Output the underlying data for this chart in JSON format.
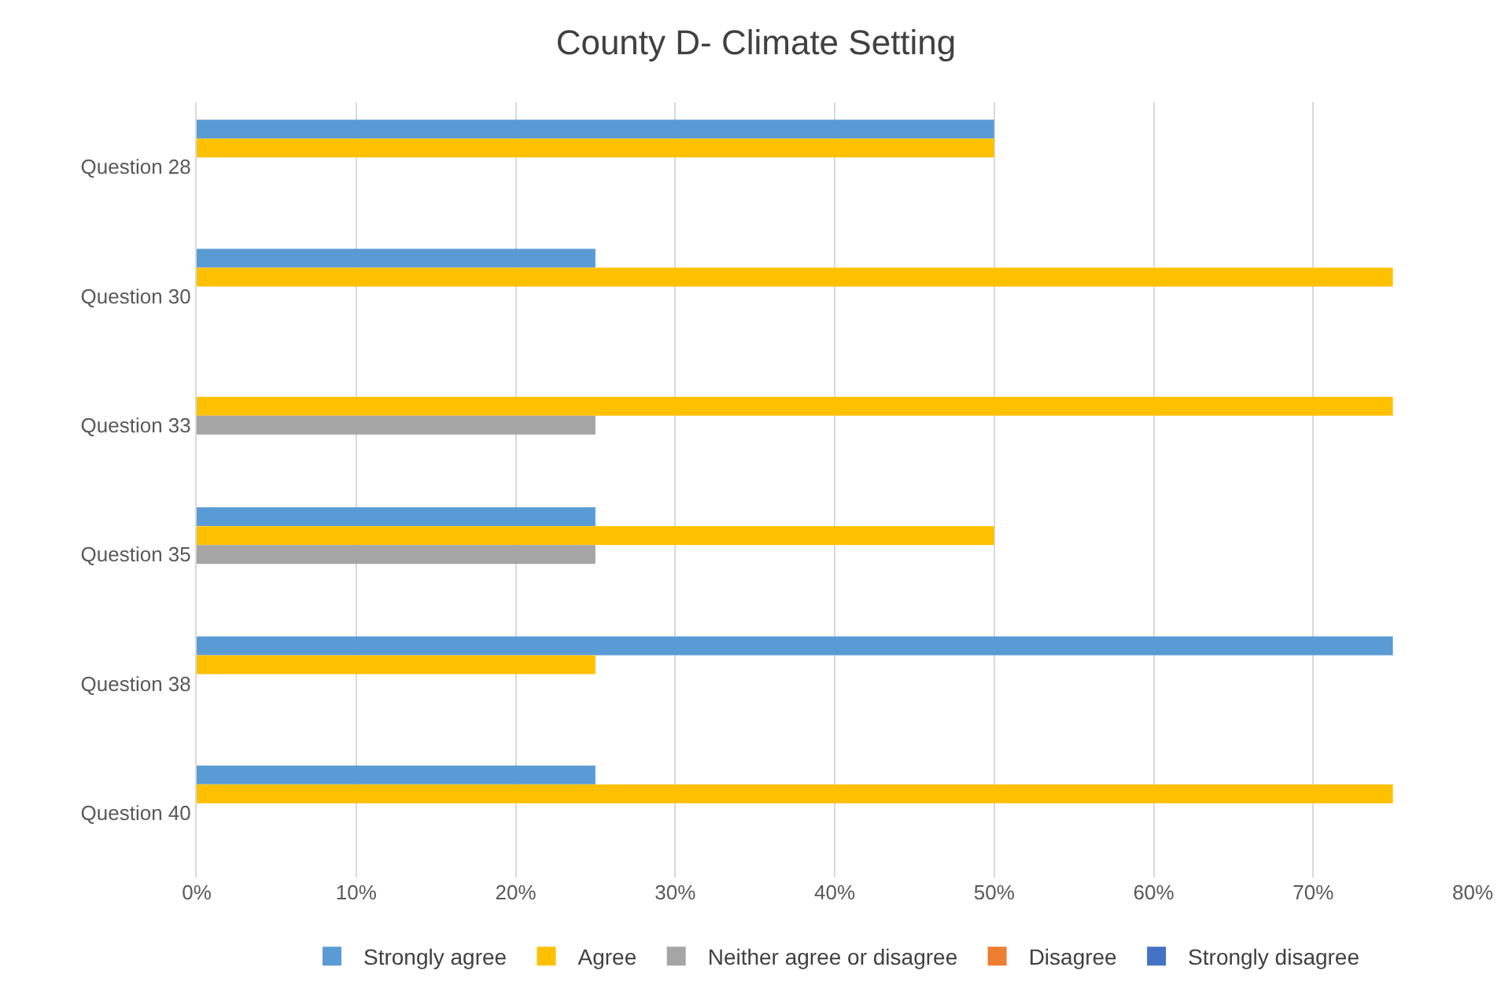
{
  "chart_data": {
    "type": "bar",
    "orientation": "horizontal",
    "title": "County D- Climate Setting",
    "categories": [
      "Question 28",
      "Question 30",
      "Question 33",
      "Question 35",
      "Question 38",
      "Question 40"
    ],
    "series": [
      {
        "name": "Strongly agree",
        "color": "#5b9bd5",
        "values": [
          50,
          25,
          0,
          25,
          75,
          25
        ]
      },
      {
        "name": "Agree",
        "color": "#ffc000",
        "values": [
          50,
          75,
          75,
          50,
          25,
          75
        ]
      },
      {
        "name": "Neither agree or disagree",
        "color": "#a5a5a5",
        "values": [
          0,
          0,
          25,
          25,
          0,
          0
        ]
      },
      {
        "name": "Disagree",
        "color": "#ed7d31",
        "values": [
          0,
          0,
          0,
          0,
          0,
          0
        ]
      },
      {
        "name": "Strongly disagree",
        "color": "#4472c4",
        "values": [
          0,
          0,
          0,
          0,
          0,
          0
        ]
      }
    ],
    "xlim": [
      0,
      80
    ],
    "xticks": [
      {
        "value": 0,
        "label": "0%"
      },
      {
        "value": 10,
        "label": "10%"
      },
      {
        "value": 20,
        "label": "20%"
      },
      {
        "value": 30,
        "label": "30%"
      },
      {
        "value": 40,
        "label": "40%"
      },
      {
        "value": 50,
        "label": "50%"
      },
      {
        "value": 60,
        "label": "60%"
      },
      {
        "value": 70,
        "label": "70%"
      },
      {
        "value": 80,
        "label": "80%"
      }
    ],
    "grid": "x",
    "legend": "bottom"
  }
}
